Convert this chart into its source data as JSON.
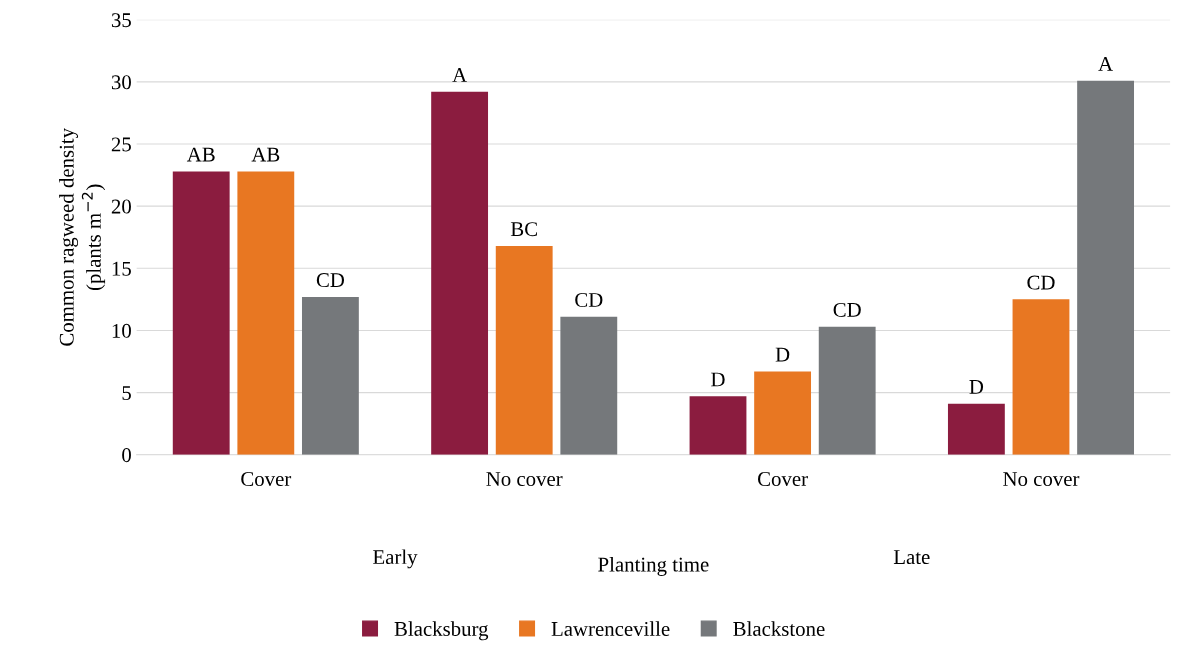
{
  "chart_data": {
    "type": "bar",
    "xlabel": "Planting time",
    "ylabel": "Common ragweed density\n(plants m$^{−2}$)",
    "categories": [
      "Cover",
      "No cover",
      "Cover",
      "No cover"
    ],
    "series": [
      {
        "name": "Blacksburg",
        "color": "#8b1c3f",
        "values": [
          22.8,
          29.2,
          4.7,
          4.1
        ],
        "value_labels": [
          "AB",
          "A",
          "D",
          "D"
        ]
      },
      {
        "name": "Lawrenceville",
        "color": "#e87722",
        "values": [
          22.8,
          16.8,
          6.7,
          12.5
        ],
        "value_labels": [
          "AB",
          "BC",
          "D",
          "CD"
        ]
      },
      {
        "name": "Blackstone",
        "color": "#75787b",
        "values": [
          12.7,
          11.1,
          10.3,
          30.1
        ],
        "value_labels": [
          "CD",
          "CD",
          "CD",
          "A"
        ]
      }
    ],
    "annotations": [
      "Early",
      "Late"
    ],
    "ylim": [
      0,
      35
    ],
    "yticks": [
      0,
      5,
      10,
      15,
      20,
      25,
      30,
      35
    ],
    "grid": "y",
    "legend": "bottom"
  }
}
